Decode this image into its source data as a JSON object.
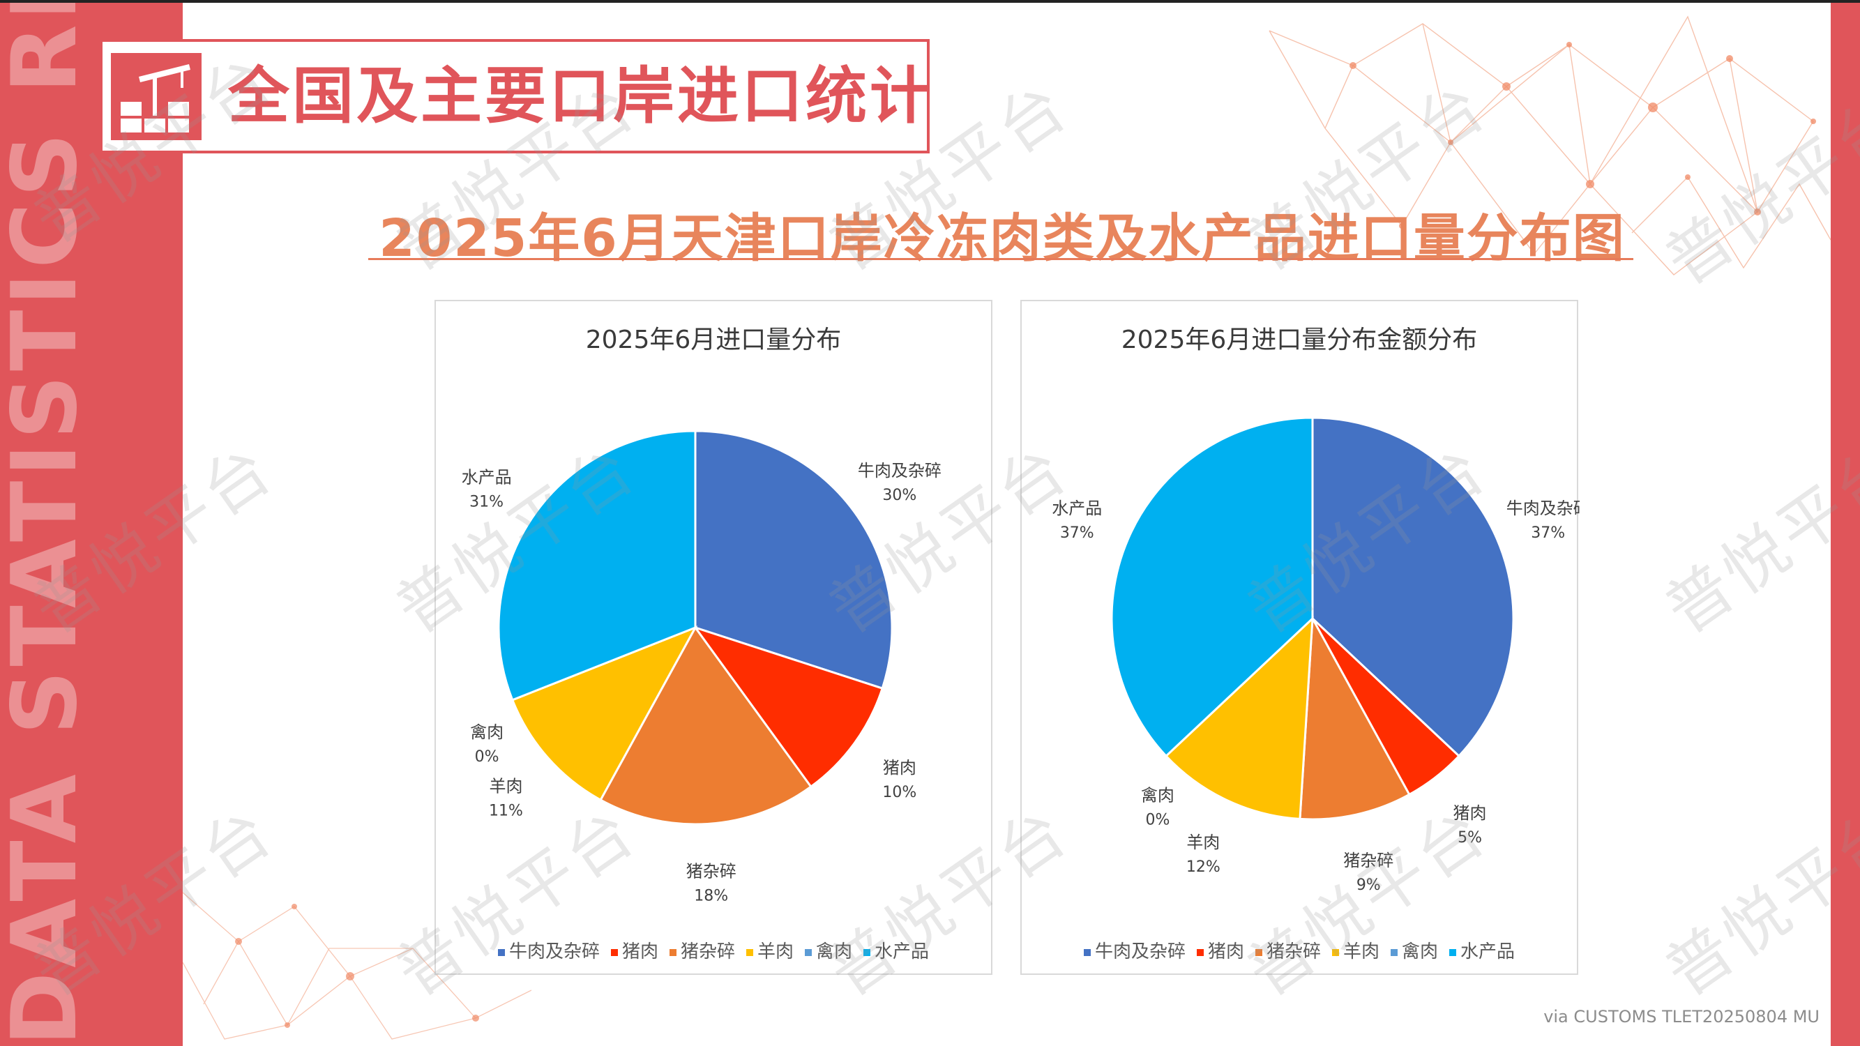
{
  "side_text": "DATA STATISTICS REPORT",
  "header": {
    "title": "全国及主要口岸进口统计"
  },
  "main_title": "2025年6月天津口岸冷冻肉类及水产品进口量分布图",
  "colors": {
    "accent": "#e0555a",
    "title_orange": "#e8855c",
    "beef": "#4472c4",
    "pork": "#ff2d00",
    "pork_offal": "#ed7d31",
    "mutton": "#ffc000",
    "poultry": "#5b9bd5",
    "aquatic": "#00b0f0"
  },
  "chart_data": [
    {
      "type": "pie",
      "title": "2025年6月进口量分布",
      "categories": [
        "牛肉及杂碎",
        "猪肉",
        "猪杂碎",
        "羊肉",
        "禽肉",
        "水产品"
      ],
      "values": [
        30,
        10,
        18,
        11,
        0,
        31
      ],
      "labels": [
        "30%",
        "10%",
        "18%",
        "11%",
        "0%",
        "31%"
      ],
      "legend_position": "bottom"
    },
    {
      "type": "pie",
      "title": "2025年6月进口量分布金额分布",
      "categories": [
        "牛肉及杂碎",
        "猪肉",
        "猪杂碎",
        "羊肉",
        "禽肉",
        "水产品"
      ],
      "values": [
        37,
        5,
        9,
        12,
        0,
        37
      ],
      "labels": [
        "37%",
        "5%",
        "9%",
        "12%",
        "0%",
        "37%"
      ],
      "legend_position": "bottom"
    }
  ],
  "watermark": "普悦平台",
  "source": "via CUSTOMS TLET20250804 MU"
}
